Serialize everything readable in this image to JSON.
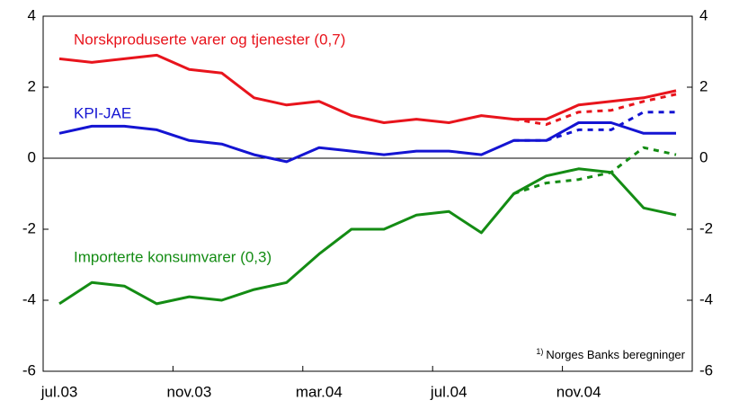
{
  "chart_data": {
    "type": "line",
    "categories": [
      "jul.03",
      null,
      null,
      null,
      "nov.03",
      null,
      null,
      null,
      "mar.04",
      null,
      null,
      null,
      "jul.04",
      null,
      null,
      null,
      "nov.04",
      null,
      null,
      null
    ],
    "series": [
      {
        "name": "Norskproduserte varer og tjenester (0,7)",
        "color": "#e8141c",
        "values": [
          2.8,
          2.7,
          2.8,
          2.9,
          2.5,
          2.4,
          1.7,
          1.5,
          1.6,
          1.2,
          1.0,
          1.1,
          1.0,
          1.2,
          1.1,
          1.1,
          1.5,
          1.6,
          1.7,
          1.9
        ]
      },
      {
        "name": "KPI-JAE",
        "color": "#1414d2",
        "values": [
          0.7,
          0.9,
          0.9,
          0.8,
          0.5,
          0.4,
          0.1,
          -0.1,
          0.3,
          0.2,
          0.1,
          0.2,
          0.2,
          0.1,
          0.5,
          0.5,
          1.0,
          1.0,
          0.7,
          0.7
        ]
      },
      {
        "name": "Importerte konsumvarer (0,3)",
        "color": "#148c14",
        "values": [
          -4.1,
          -3.5,
          -3.6,
          -4.1,
          -3.9,
          -4.0,
          -3.7,
          -3.5,
          -2.7,
          -2.0,
          -2.0,
          -1.6,
          -1.5,
          -2.1,
          -1.0,
          -0.5,
          -0.3,
          -0.4,
          -1.4,
          -1.6
        ]
      },
      {
        "color": "#e8141c",
        "dashed": true,
        "values": [
          null,
          null,
          null,
          null,
          null,
          null,
          null,
          null,
          null,
          null,
          null,
          null,
          null,
          null,
          1.1,
          0.95,
          1.3,
          1.35,
          1.6,
          1.8
        ]
      },
      {
        "color": "#1414d2",
        "dashed": true,
        "values": [
          null,
          null,
          null,
          null,
          null,
          null,
          null,
          null,
          null,
          null,
          null,
          null,
          null,
          null,
          0.5,
          0.5,
          0.8,
          0.8,
          1.3,
          1.3
        ]
      },
      {
        "color": "#148c14",
        "dashed": true,
        "values": [
          null,
          null,
          null,
          null,
          null,
          null,
          null,
          null,
          null,
          null,
          null,
          null,
          null,
          null,
          -1.0,
          -0.7,
          -0.6,
          -0.4,
          0.3,
          0.1
        ]
      }
    ],
    "ylim": [
      -6,
      4
    ],
    "yticks": [
      -6,
      -4,
      -2,
      0,
      2,
      4
    ],
    "y2lim": [
      -6,
      4
    ],
    "y2ticks": [
      -6,
      -4,
      -2,
      0,
      2,
      4
    ],
    "footnote": {
      "marker": "1)",
      "text": "Norges Banks beregninger"
    },
    "grid": false
  }
}
